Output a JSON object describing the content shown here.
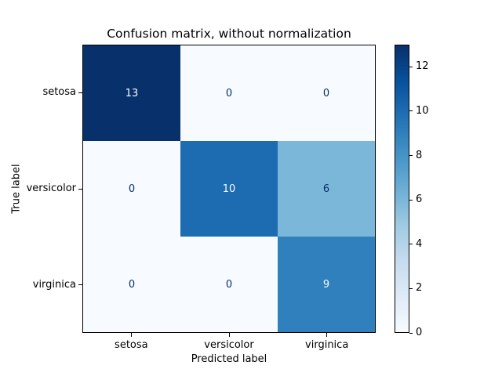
{
  "chart_data": {
    "type": "heatmap",
    "title": "Confusion matrix, without normalization",
    "xlabel": "Predicted label",
    "ylabel": "True label",
    "x_categories": [
      "setosa",
      "versicolor",
      "virginica"
    ],
    "y_categories": [
      "setosa",
      "versicolor",
      "virginica"
    ],
    "rows": [
      [
        13,
        0,
        0
      ],
      [
        0,
        10,
        6
      ],
      [
        0,
        0,
        9
      ]
    ],
    "value_range": [
      0,
      13
    ],
    "colormap": "Blues",
    "colormap_stops": [
      "#f7fbff",
      "#deebf7",
      "#c6dbef",
      "#9ecae1",
      "#6baed6",
      "#4292c6",
      "#2171b5",
      "#08519c",
      "#08306b"
    ],
    "cell_text_light": "#f7fbff",
    "cell_text_dark": "#08306b",
    "colorbar_ticks": [
      0,
      2,
      4,
      6,
      8,
      10,
      12
    ],
    "colorbar_position": "right",
    "grid": false,
    "background": "#ffffff"
  }
}
